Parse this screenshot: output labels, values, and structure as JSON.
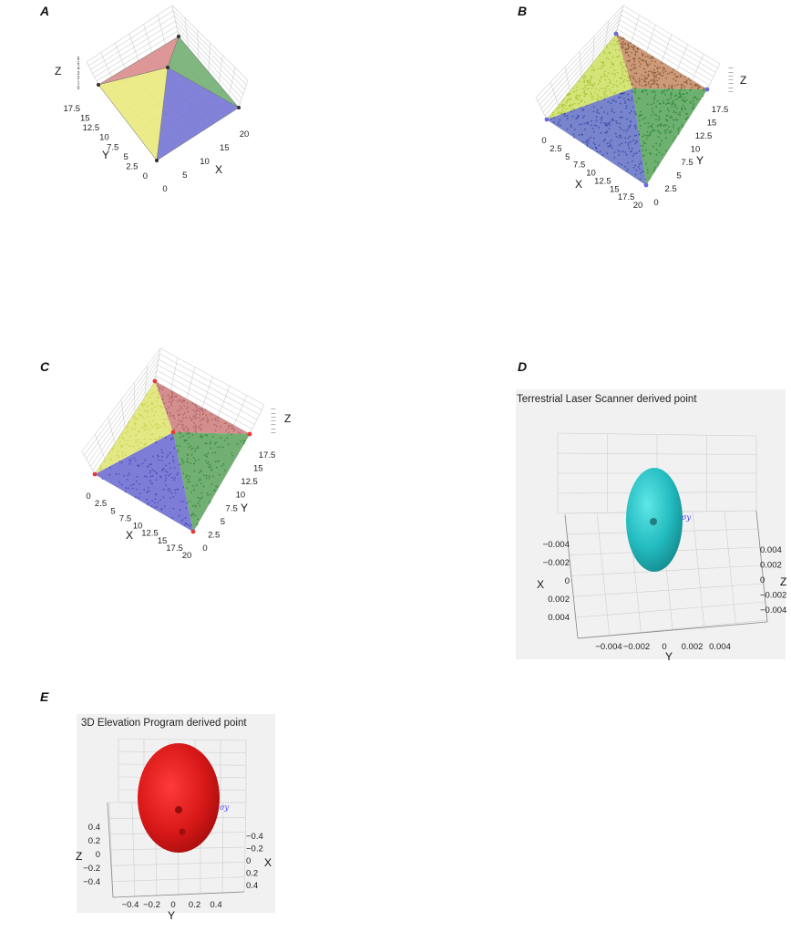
{
  "panels": {
    "A": {
      "label": "A"
    },
    "B": {
      "label": "B"
    },
    "C": {
      "label": "C"
    },
    "D": {
      "label": "D",
      "title": "Terrestrial Laser Scanner derived point"
    },
    "E": {
      "label": "E",
      "title": "3D Elevation Program derived point"
    }
  },
  "chart_data": [
    {
      "panel": "A",
      "type": "surface3d",
      "description_free": true,
      "x_ticks": [
        "0",
        "5",
        "10",
        "15",
        "20"
      ],
      "y_ticks": [
        "0",
        "2.5",
        "5",
        "7.5",
        "10",
        "12.5",
        "15",
        "17.5"
      ],
      "z_ticks": [
        "0",
        "1",
        "2",
        "3",
        "4",
        "5",
        "6"
      ],
      "xlabel": "X",
      "ylabel": "Y",
      "zlabel": "Z",
      "faces": [
        {
          "color": "#d98a8a"
        },
        {
          "color": "#6fae6f"
        },
        {
          "color": "#7272d4"
        },
        {
          "color": "#e9e97a"
        }
      ]
    },
    {
      "panel": "B",
      "type": "scatter3d",
      "x_ticks": [
        "0",
        "2.5",
        "5",
        "7.5",
        "10",
        "12.5",
        "15",
        "17.5",
        "20"
      ],
      "y_ticks": [
        "2.5",
        "5",
        "7.5",
        "10",
        "12.5",
        "15",
        "17.5"
      ],
      "y_zero": "0",
      "xlabel": "X",
      "ylabel": "Y",
      "zlabel": "Z",
      "faces": [
        {
          "color": "#8a5a3a"
        },
        {
          "color": "#2f8a3a"
        },
        {
          "color": "#3a4aaa"
        },
        {
          "color": "#a8c43a"
        }
      ]
    },
    {
      "panel": "C",
      "type": "scatter3d",
      "x_ticks": [
        "0",
        "2.5",
        "5",
        "7.5",
        "10",
        "12.5",
        "15",
        "17.5",
        "20"
      ],
      "y_ticks": [
        "0",
        "2.5",
        "5",
        "7.5",
        "10",
        "12.5",
        "15",
        "17.5"
      ],
      "xlabel": "X",
      "ylabel": "Y",
      "zlabel": "Z",
      "faces": [
        {
          "color": "#b06060"
        },
        {
          "color": "#3a8a3a"
        },
        {
          "color": "#4a4ab0"
        },
        {
          "color": "#c8d450"
        }
      ]
    },
    {
      "panel": "D",
      "type": "ellipsoid3d",
      "title": "Terrestrial Laser Scanner derived point",
      "x_ticks": [
        "−0.004",
        "−0.002",
        "0",
        "0.002",
        "0.004"
      ],
      "y_ticks": [
        "−0.004",
        "−0.002",
        "0",
        "0.002",
        "0.004"
      ],
      "z_ticks": [
        "0.004",
        "0.002",
        "0",
        "−0.002",
        "−0.004"
      ],
      "xlabel": "X",
      "ylabel": "Y",
      "zlabel": "Z",
      "sigma_label": "σy",
      "color": "#2ec4c4"
    },
    {
      "panel": "E",
      "type": "ellipsoid3d",
      "title": "3D Elevation Program derived point",
      "z_ticks": [
        "0.4",
        "0.2",
        "0",
        "−0.2",
        "−0.4"
      ],
      "y_ticks": [
        "−0.4",
        "−0.2",
        "0",
        "0.2",
        "0.4"
      ],
      "x_ticks": [
        "−0.4",
        "−0.2",
        "0",
        "0.2",
        "0.4"
      ],
      "xlabel": "X",
      "ylabel": "Y",
      "zlabel": "Z",
      "sigma_label": "σy",
      "color": "#e02020"
    }
  ]
}
